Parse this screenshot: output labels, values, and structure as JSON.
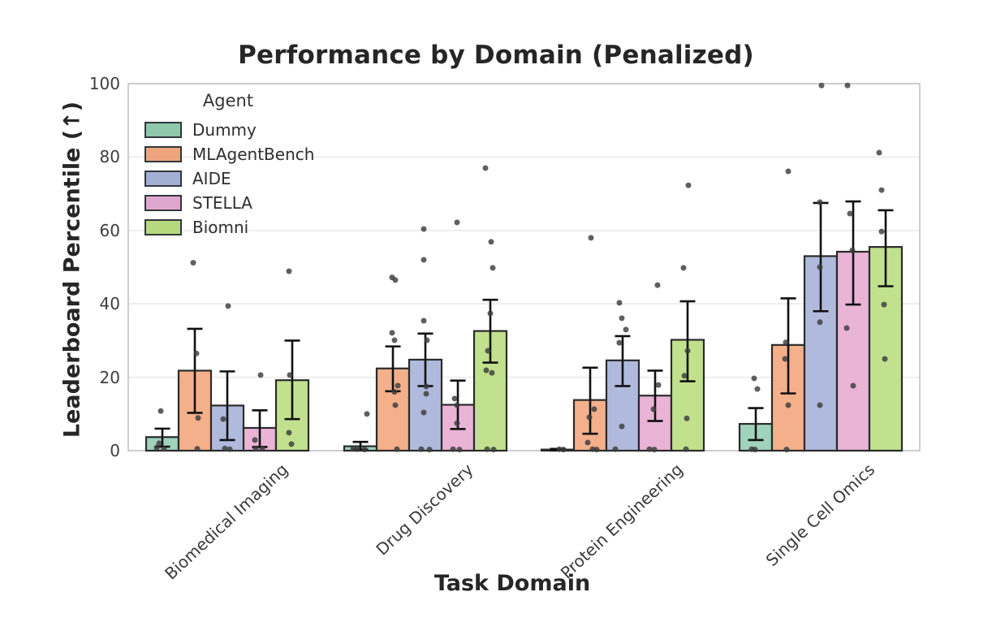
{
  "title": "Performance by Domain (Penalized)",
  "chart_data": {
    "type": "bar",
    "title": "Performance by Domain (Penalized)",
    "xlabel": "Task Domain",
    "ylabel": "Leaderboard Percentile (↑)",
    "ylim": [
      0,
      100
    ],
    "yticks": [
      0,
      20,
      40,
      60,
      80,
      100
    ],
    "grid": "horizontal",
    "legend_title": "Agent",
    "legend_position": "upper-left-inside",
    "categories": [
      "Biomedical Imaging",
      "Drug Discovery",
      "Protein Engineering",
      "Single Cell Omics"
    ],
    "colors": {
      "grid": "#ececec",
      "spine": "#c9c9c9",
      "bar_edge": "#2b2b2b",
      "error_bar": "#111111",
      "point": "#3c3c3c",
      "title_text": "#262626",
      "tick_text": "#3a3a3a"
    },
    "series": [
      {
        "name": "Dummy",
        "color": "#a0d2bc",
        "legend_color": "#8fc8ab",
        "values": [
          3.7,
          1.2,
          0.3,
          7.3
        ],
        "whisker_low": [
          1.1,
          0.3,
          0.1,
          2.9
        ],
        "whisker_high": [
          6.0,
          2.4,
          0.5,
          11.6
        ],
        "points": [
          [
            [
              -2,
              10.8
            ],
            [
              -4,
              2.0
            ],
            [
              -7,
              0.8
            ],
            [
              2,
              0.5
            ]
          ],
          [
            [
              8,
              10.0
            ],
            [
              -9,
              0.5
            ],
            [
              -4,
              0.4
            ],
            [
              5,
              0.3
            ]
          ],
          [
            [
              2,
              0.4
            ],
            [
              7,
              0.3
            ]
          ],
          [
            [
              -2,
              19.7
            ],
            [
              2,
              16.8
            ],
            [
              -5,
              0.4
            ],
            [
              -1,
              0.3
            ]
          ]
        ]
      },
      {
        "name": "MLAgentBench",
        "color": "#f4b08a",
        "legend_color": "#eea57e",
        "values": [
          21.8,
          22.4,
          13.8,
          28.8
        ],
        "whisker_low": [
          10.3,
          16.2,
          4.6,
          15.6
        ],
        "whisker_high": [
          33.2,
          28.4,
          22.6,
          41.5
        ],
        "points": [
          [
            [
              -2,
              51.2
            ],
            [
              2,
              26.5
            ],
            [
              4,
              8.9
            ],
            [
              3,
              0.5
            ]
          ],
          [
            [
              -1,
              47.2
            ],
            [
              3,
              46.5
            ],
            [
              -1,
              32.1
            ],
            [
              2,
              30.1
            ],
            [
              6,
              17.7
            ],
            [
              2,
              16.0
            ],
            [
              3,
              12.4
            ],
            [
              5,
              0.4
            ]
          ],
          [
            [
              1,
              58.0
            ],
            [
              5,
              11.3
            ],
            [
              -1,
              9.1
            ],
            [
              -3,
              2.2
            ],
            [
              3,
              0.4
            ],
            [
              8,
              0.3
            ]
          ],
          [
            [
              0,
              76.1
            ],
            [
              -3,
              29.5
            ],
            [
              -4,
              25.0
            ],
            [
              0,
              12.4
            ],
            [
              -2,
              0.3
            ]
          ]
        ]
      },
      {
        "name": "AIDE",
        "color": "#afbadc",
        "legend_color": "#a4b0d3",
        "values": [
          12.3,
          24.8,
          24.6,
          53.0
        ],
        "whisker_low": [
          2.9,
          17.6,
          17.6,
          38.0
        ],
        "whisker_high": [
          21.6,
          31.9,
          31.2,
          67.5
        ],
        "points": [
          [
            [
              1,
              39.4
            ],
            [
              -5,
              8.6
            ],
            [
              -3,
              0.6
            ],
            [
              3,
              0.4
            ]
          ],
          [
            [
              -2,
              60.4
            ],
            [
              -2,
              52.0
            ],
            [
              -2,
              35.4
            ],
            [
              2,
              30.1
            ],
            [
              1,
              17.5
            ],
            [
              1,
              15.5
            ],
            [
              -2,
              10.4
            ],
            [
              -5,
              0.4
            ],
            [
              5,
              0.3
            ]
          ],
          [
            [
              -4,
              40.3
            ],
            [
              -1,
              36.1
            ],
            [
              4,
              33.0
            ],
            [
              -4,
              29.4
            ],
            [
              -1,
              6.6
            ],
            [
              -9,
              0.4
            ]
          ],
          [
            [
              1,
              99.5
            ],
            [
              -1,
              67.7
            ],
            [
              -1,
              50.0
            ],
            [
              -1,
              35.0
            ],
            [
              -1,
              12.4
            ]
          ]
        ]
      },
      {
        "name": "STELLA",
        "color": "#e9b4d6",
        "legend_color": "#e0a7ce",
        "values": [
          6.2,
          12.5,
          15.0,
          54.2
        ],
        "whisker_low": [
          1.0,
          5.9,
          8.1,
          39.8
        ],
        "whisker_high": [
          11.0,
          19.1,
          21.8,
          67.9
        ],
        "points": [
          [
            [
              1,
              20.6
            ],
            [
              -6,
              2.9
            ],
            [
              -5,
              0.6
            ],
            [
              3,
              0.5
            ]
          ],
          [
            [
              -1,
              62.2
            ],
            [
              -4,
              14.2
            ],
            [
              -1,
              12.4
            ],
            [
              -1,
              7.5
            ],
            [
              -6,
              0.4
            ],
            [
              2,
              0.3
            ]
          ],
          [
            [
              3,
              45.1
            ],
            [
              4,
              17.9
            ],
            [
              -2,
              11.3
            ],
            [
              -7,
              0.4
            ],
            [
              -1,
              0.3
            ]
          ],
          [
            [
              -7,
              99.5
            ],
            [
              -4,
              64.6
            ],
            [
              -1,
              54.6
            ],
            [
              -8,
              33.4
            ],
            [
              0,
              17.7
            ]
          ]
        ]
      },
      {
        "name": "Biomni",
        "color": "#c2e18e",
        "legend_color": "#b7d97d",
        "values": [
          19.2,
          32.6,
          30.2,
          55.5
        ],
        "whisker_low": [
          8.6,
          24.0,
          18.9,
          44.8
        ],
        "whisker_high": [
          30.0,
          41.1,
          40.7,
          65.5
        ],
        "points": [
          [
            [
              -4,
              48.9
            ],
            [
              -3,
              20.6
            ],
            [
              -4,
              4.9
            ],
            [
              -1,
              1.8
            ]
          ],
          [
            [
              -6,
              77.0
            ],
            [
              1,
              56.9
            ],
            [
              3,
              49.8
            ],
            [
              0,
              37.4
            ],
            [
              -3,
              27.2
            ],
            [
              -5,
              21.9
            ],
            [
              2,
              21.2
            ],
            [
              -4,
              0.4
            ],
            [
              4,
              0.3
            ]
          ],
          [
            [
              1,
              72.3
            ],
            [
              -5,
              49.8
            ],
            [
              0,
              27.2
            ],
            [
              -4,
              20.4
            ],
            [
              -1,
              8.8
            ],
            [
              -2,
              0.4
            ]
          ],
          [
            [
              -8,
              81.2
            ],
            [
              -5,
              71.0
            ],
            [
              -5,
              59.7
            ],
            [
              -2,
              39.8
            ],
            [
              -1,
              25.0
            ]
          ]
        ]
      }
    ]
  }
}
